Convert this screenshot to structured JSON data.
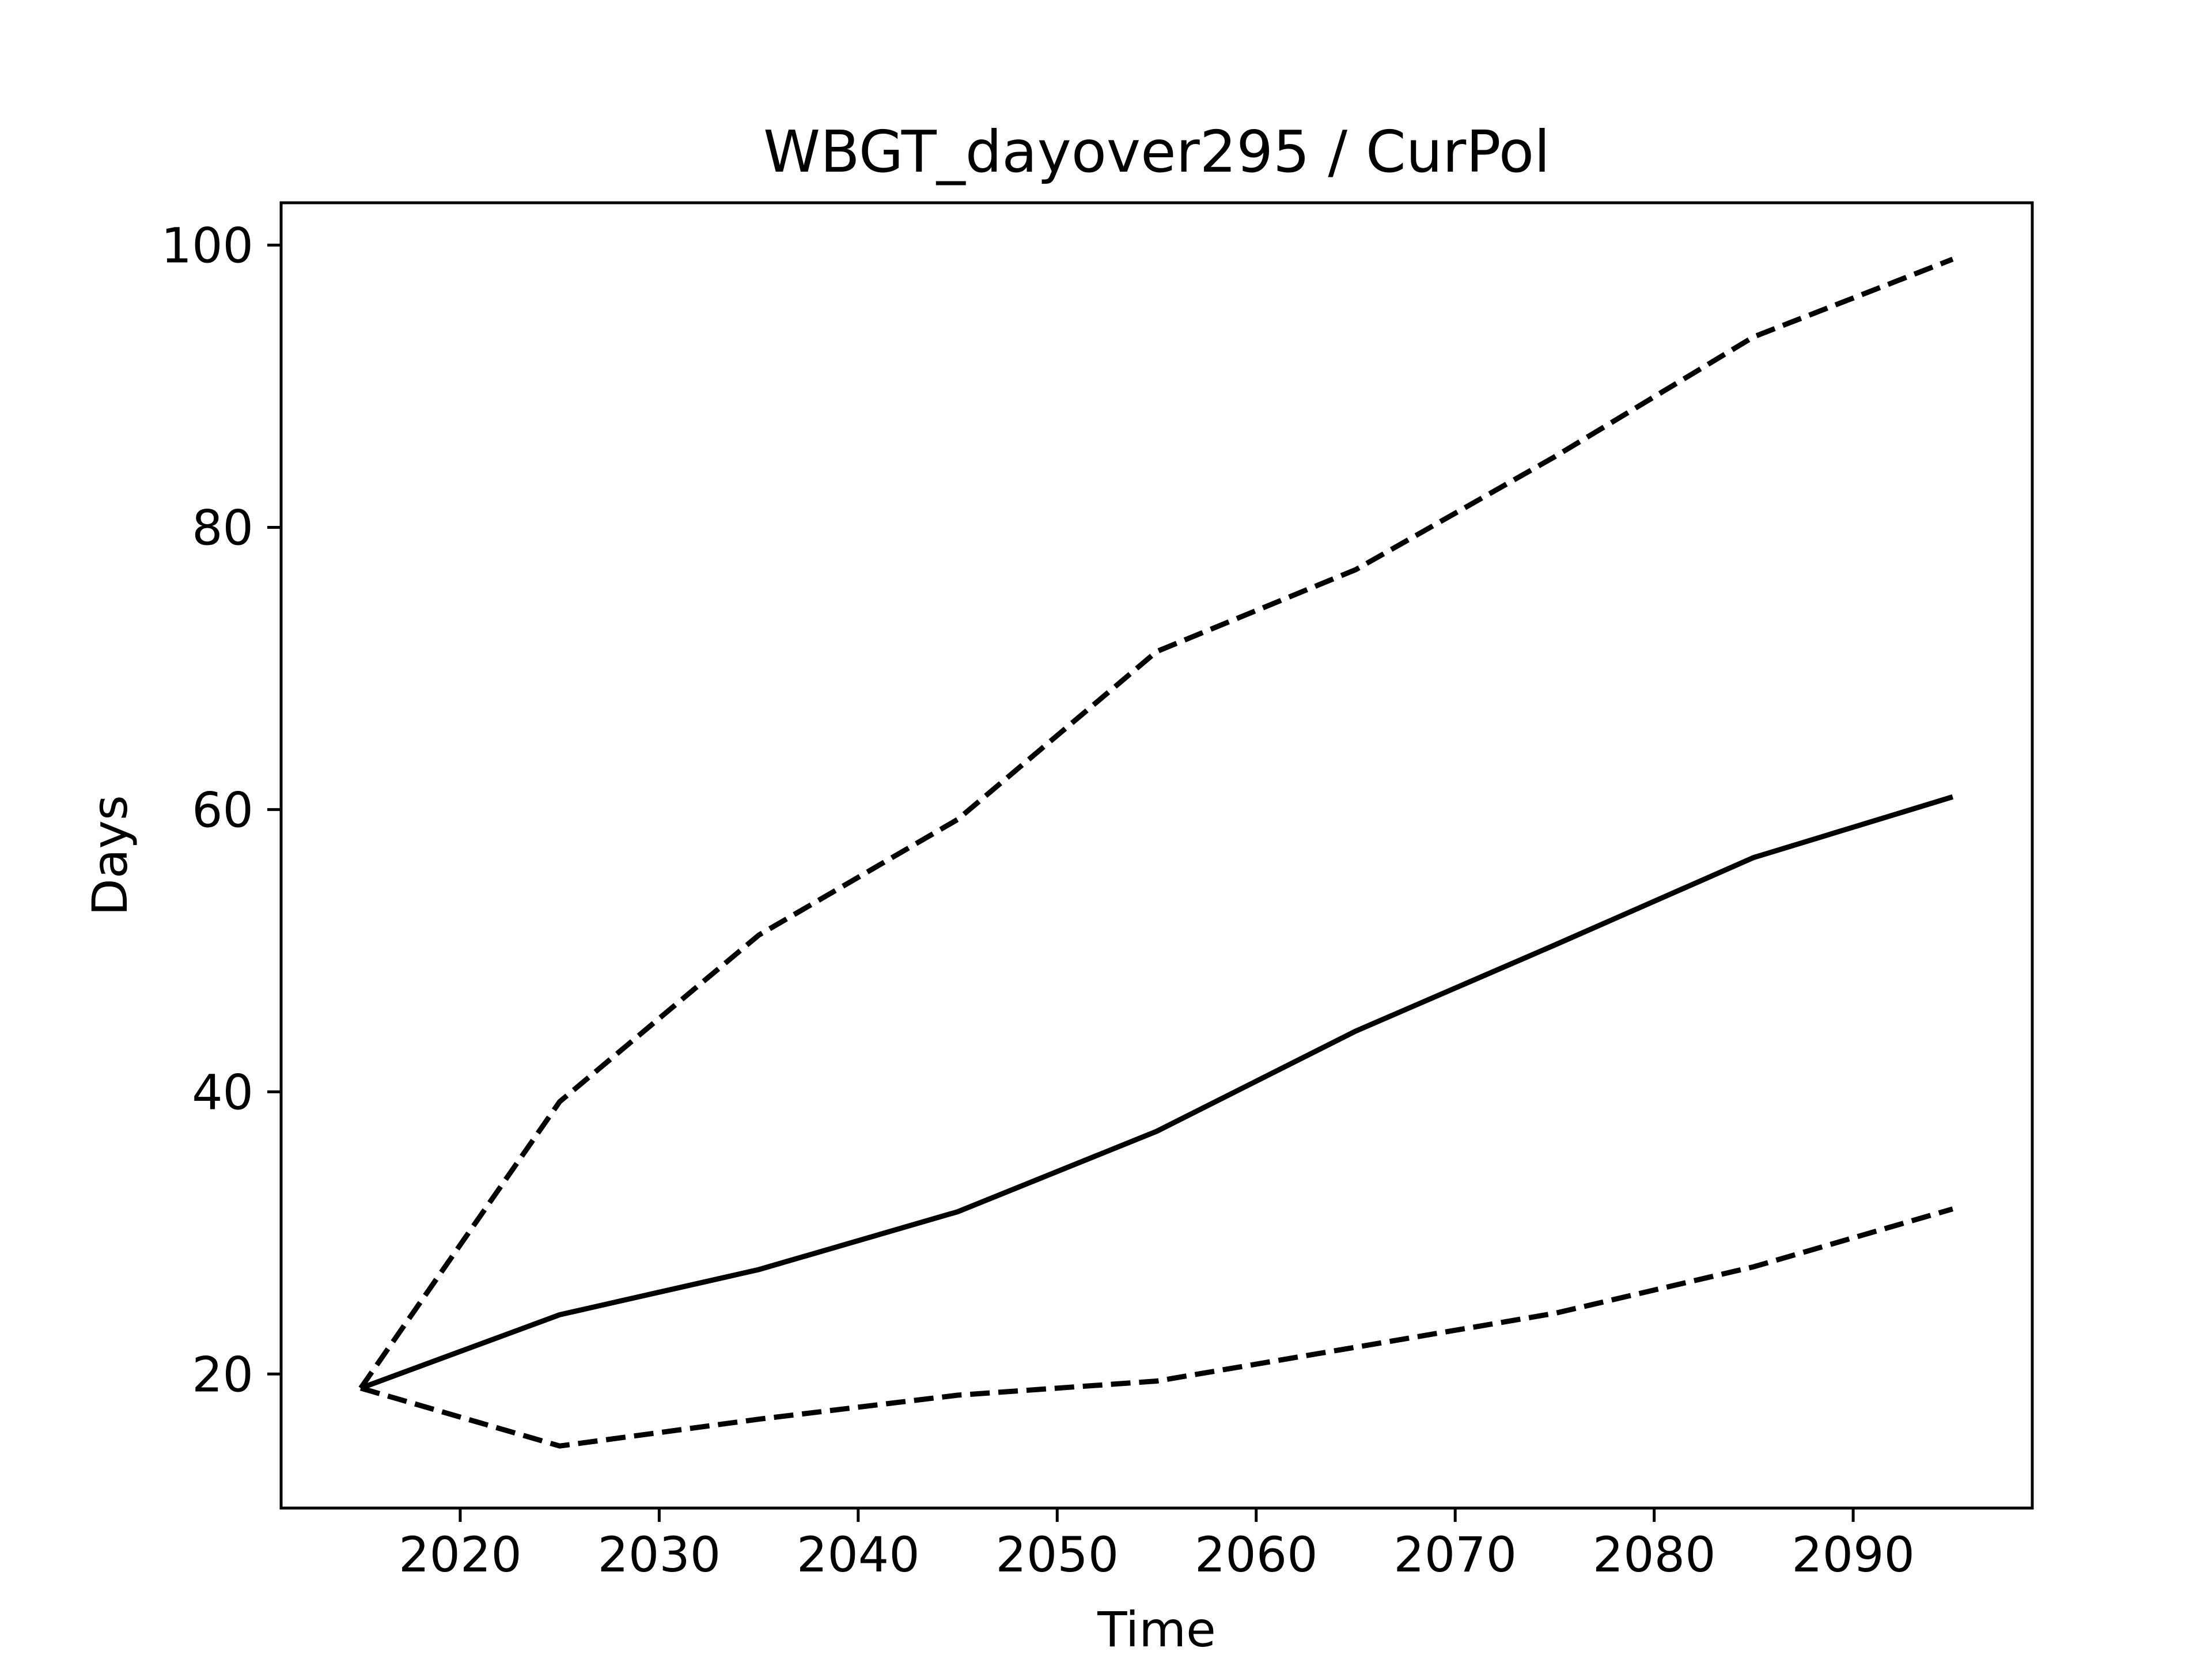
{
  "chart_data": {
    "type": "line",
    "title": "WBGT_dayover295 / CurPol",
    "xlabel": "Time",
    "ylabel": "Days",
    "xlim": [
      2011,
      2099
    ],
    "ylim": [
      10.5,
      103
    ],
    "xticks": [
      2020,
      2030,
      2040,
      2050,
      2060,
      2070,
      2080,
      2090
    ],
    "yticks": [
      20,
      40,
      60,
      80,
      100
    ],
    "grid": false,
    "legend": null,
    "x": [
      2015,
      2025,
      2035,
      2045,
      2055,
      2065,
      2075,
      2085,
      2095
    ],
    "series": [
      {
        "style": "solid",
        "color": "#000000",
        "values": [
          19,
          24.2,
          27.4,
          31.5,
          37.2,
          44.3,
          50.4,
          56.6,
          60.9
        ]
      },
      {
        "style": "dashed",
        "color": "#000000",
        "values": [
          19,
          39.3,
          51.1,
          59.3,
          71.2,
          77.0,
          85.0,
          93.5,
          99.0
        ]
      },
      {
        "style": "dashed",
        "color": "#000000",
        "values": [
          19,
          14.9,
          16.8,
          18.5,
          19.5,
          21.9,
          24.3,
          27.6,
          31.7
        ]
      }
    ]
  }
}
